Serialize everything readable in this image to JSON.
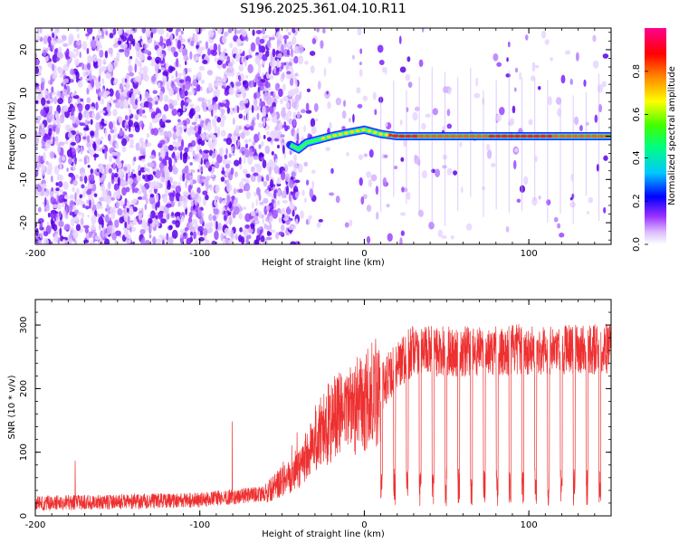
{
  "title": "S196.2025.361.04.10.R11",
  "chart_data": [
    {
      "type": "heatmap",
      "name": "spectrogram",
      "xlabel": "Height of straight line (km)",
      "ylabel": "Frequency (Hz)",
      "xlim": [
        -200,
        150
      ],
      "ylim": [
        -25,
        25
      ],
      "xticks": [
        -200,
        -100,
        0,
        100
      ],
      "yticks": [
        -20,
        -10,
        0,
        10,
        20
      ],
      "colorbar": {
        "label": "Normalized spectral amplitude",
        "range": [
          0,
          1
        ],
        "ticks": [
          "0.0",
          "0.2",
          "0.4",
          "0.6",
          "0.8"
        ],
        "tick_values": [
          0,
          0.2,
          0.4,
          0.6,
          0.8
        ],
        "colors": [
          "#ffffff",
          "#e6d0ff",
          "#8a2be2",
          "#0000ff",
          "#00bfff",
          "#00ff80",
          "#80ff00",
          "#ffff00",
          "#ff8000",
          "#ff0000",
          "#ff0080"
        ]
      },
      "tone_track": [
        {
          "x": -45,
          "y": -2
        },
        {
          "x": -40,
          "y": -3
        },
        {
          "x": -35,
          "y": -1.5
        },
        {
          "x": -30,
          "y": -1
        },
        {
          "x": -20,
          "y": 0
        },
        {
          "x": -10,
          "y": 0.8
        },
        {
          "x": 0,
          "y": 1.5
        },
        {
          "x": 10,
          "y": 0.5
        },
        {
          "x": 20,
          "y": 0
        },
        {
          "x": 150,
          "y": 0
        }
      ],
      "colors": {
        "track": "#ff3030",
        "speckle": "#8a2be2"
      }
    },
    {
      "type": "line",
      "name": "snr",
      "xlabel": "Height of straight line (km)",
      "ylabel": "SNR (10 * v/v)",
      "xlim": [
        -200,
        150
      ],
      "ylim": [
        0,
        340
      ],
      "xticks": [
        -200,
        -100,
        0,
        100
      ],
      "yticks": [
        0,
        100,
        200,
        300
      ],
      "series": [
        {
          "name": "SNR",
          "color": "#ee3030",
          "profile": [
            {
              "x": -200,
              "y": 20
            },
            {
              "x": -150,
              "y": 22
            },
            {
              "x": -100,
              "y": 25
            },
            {
              "x": -60,
              "y": 35
            },
            {
              "x": -40,
              "y": 75
            },
            {
              "x": -30,
              "y": 120
            },
            {
              "x": -20,
              "y": 150
            },
            {
              "x": -10,
              "y": 165
            },
            {
              "x": 0,
              "y": 180
            },
            {
              "x": 10,
              "y": 200
            },
            {
              "x": 20,
              "y": 240
            },
            {
              "x": 30,
              "y": 260
            },
            {
              "x": 60,
              "y": 258
            },
            {
              "x": 100,
              "y": 262
            },
            {
              "x": 150,
              "y": 262
            }
          ],
          "dropouts_start_km": 10,
          "dropout_spacing_km": 7.8
        }
      ]
    }
  ]
}
